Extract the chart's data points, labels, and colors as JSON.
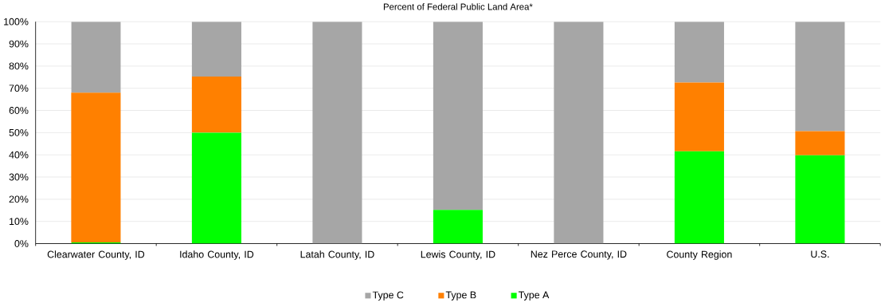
{
  "chart_data": {
    "type": "bar",
    "title": "Percent of Federal Public Land Area*",
    "stacked": true,
    "categories": [
      "Clearwater County, ID",
      "Idaho County, ID",
      "Latah County, ID",
      "Lewis County, ID",
      "Nez Perce County, ID",
      "County Region",
      "U.S."
    ],
    "series": [
      {
        "name": "Type A",
        "color": "#00ff00",
        "values": [
          0.5,
          50,
          0,
          15.2,
          0,
          41.6,
          39.8
        ]
      },
      {
        "name": "Type B",
        "color": "#ff8000",
        "values": [
          67.5,
          25.3,
          0,
          0,
          0,
          31,
          10.9
        ]
      },
      {
        "name": "Type C",
        "color": "#a6a6a6",
        "values": [
          32,
          24.7,
          100,
          84.8,
          100,
          27.4,
          49.3
        ]
      }
    ],
    "ylim": [
      0,
      100
    ],
    "yticks": [
      {
        "value": 0,
        "label": "0%"
      },
      {
        "value": 10,
        "label": "10%"
      },
      {
        "value": 20,
        "label": "20%"
      },
      {
        "value": 30,
        "label": "30%"
      },
      {
        "value": 40,
        "label": "40%"
      },
      {
        "value": 50,
        "label": "50%"
      },
      {
        "value": 60,
        "label": "60%"
      },
      {
        "value": 70,
        "label": "70%"
      },
      {
        "value": 80,
        "label": "80%"
      },
      {
        "value": 90,
        "label": "90%"
      },
      {
        "value": 100,
        "label": "100%"
      }
    ],
    "grid": "y",
    "legend": "bottom"
  }
}
